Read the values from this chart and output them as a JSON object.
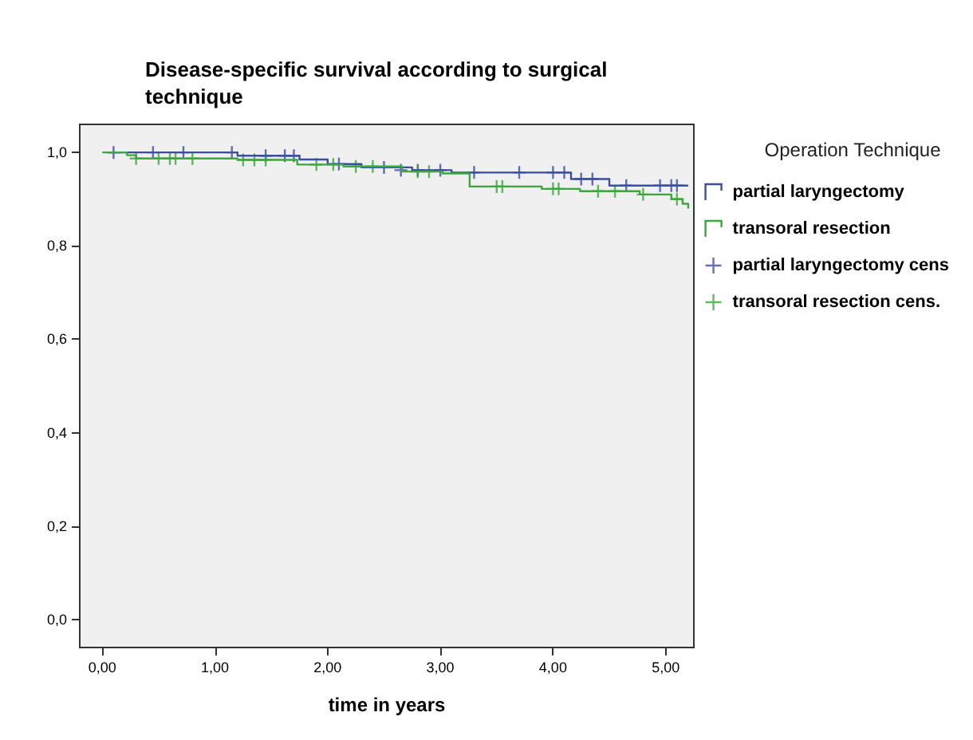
{
  "chart_data": {
    "type": "step",
    "title": "Disease-specific survival according to surgical technique",
    "xlabel": "time in years",
    "legend_title": "Operation Technique",
    "legend": "right",
    "grid": false,
    "line_style": "solid",
    "xlim": [
      -0.2,
      5.25
    ],
    "ylim": [
      -0.06,
      1.06
    ],
    "xticks": [
      {
        "value": 0,
        "label": "0,00"
      },
      {
        "value": 1,
        "label": "1,00"
      },
      {
        "value": 2,
        "label": "2,00"
      },
      {
        "value": 3,
        "label": "3,00"
      },
      {
        "value": 4,
        "label": "4,00"
      },
      {
        "value": 5,
        "label": "5,00"
      }
    ],
    "yticks": [
      {
        "value": 0,
        "label": "0,0"
      },
      {
        "value": 0.2,
        "label": "0,2"
      },
      {
        "value": 0.4,
        "label": "0,4"
      },
      {
        "value": 0.6,
        "label": "0,6"
      },
      {
        "value": 0.8,
        "label": "0,8"
      },
      {
        "value": 1,
        "label": "1,0"
      }
    ],
    "series": [
      {
        "name": "partial laryngectomy",
        "marker": "none",
        "color": "#3b4ea0",
        "x": [
          0.05,
          1.2,
          1.75,
          2.0,
          2.3,
          2.75,
          3.1,
          4.16,
          4.5,
          5.2
        ],
        "values": [
          1.0,
          0.993,
          0.985,
          0.975,
          0.968,
          0.962,
          0.957,
          0.943,
          0.929,
          0.929
        ]
      },
      {
        "name": "transoral resection",
        "marker": "none",
        "color": "#3aa83a",
        "x": [
          0.0,
          0.22,
          0.3,
          1.2,
          1.73,
          2.14,
          2.66,
          3.02,
          3.26,
          3.9,
          4.24,
          4.77,
          5.05,
          5.15,
          5.2
        ],
        "values": [
          1.0,
          0.994,
          0.987,
          0.984,
          0.974,
          0.97,
          0.959,
          0.955,
          0.927,
          0.922,
          0.917,
          0.91,
          0.9,
          0.89,
          0.88
        ]
      },
      {
        "name": "partial laryngectomy cens",
        "type": "scatter",
        "marker": "cross",
        "color": "#3b4ea0",
        "x": [
          0.1,
          0.45,
          0.72,
          1.15,
          1.45,
          1.62,
          1.7,
          2.1,
          2.5,
          2.65,
          2.8,
          3.0,
          3.3,
          3.7,
          4.0,
          4.1,
          4.25,
          4.35,
          4.65,
          4.95,
          5.05,
          5.1
        ],
        "values": [
          1.0,
          1.0,
          1.0,
          1.0,
          0.993,
          0.993,
          0.993,
          0.975,
          0.968,
          0.962,
          0.962,
          0.962,
          0.957,
          0.957,
          0.957,
          0.957,
          0.943,
          0.943,
          0.929,
          0.929,
          0.929,
          0.929
        ]
      },
      {
        "name": "transoral resection cens.",
        "type": "scatter",
        "marker": "cross",
        "color": "#3aa83a",
        "x": [
          0.3,
          0.5,
          0.6,
          0.65,
          0.8,
          1.25,
          1.35,
          1.45,
          1.9,
          2.05,
          2.25,
          2.4,
          2.8,
          2.9,
          3.5,
          3.55,
          4.0,
          4.05,
          4.4,
          4.55,
          4.8,
          5.1
        ],
        "values": [
          0.987,
          0.987,
          0.987,
          0.987,
          0.987,
          0.984,
          0.984,
          0.984,
          0.974,
          0.974,
          0.97,
          0.97,
          0.959,
          0.959,
          0.927,
          0.927,
          0.922,
          0.922,
          0.917,
          0.917,
          0.91,
          0.9
        ]
      }
    ]
  }
}
